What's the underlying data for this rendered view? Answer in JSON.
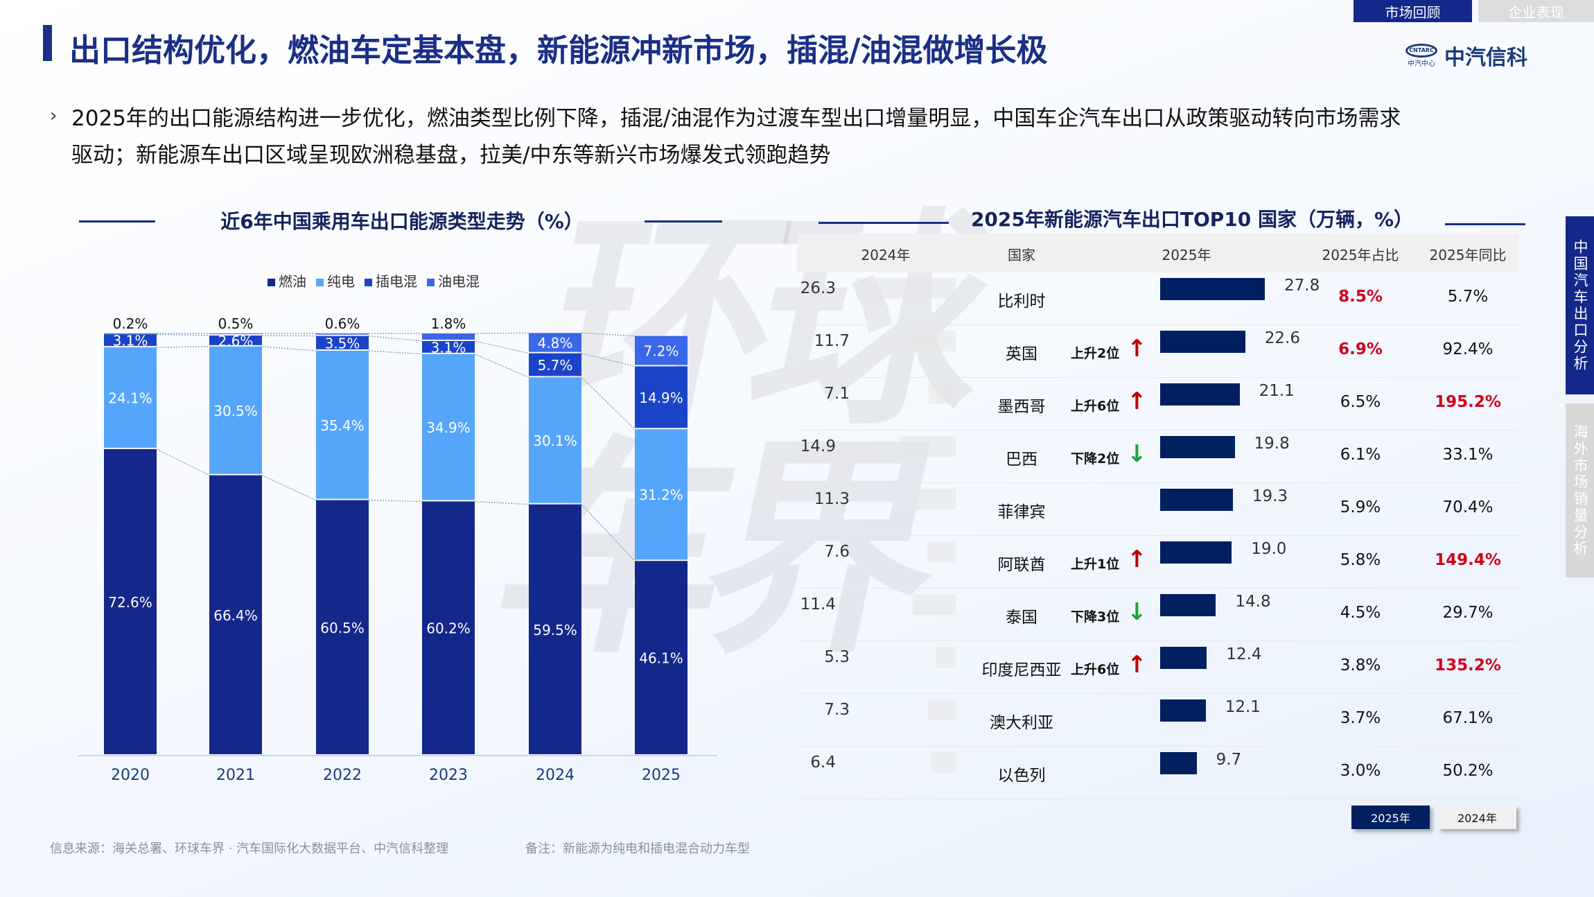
{
  "nav": {
    "tabs": [
      {
        "label": "市场回顾",
        "active": true
      },
      {
        "label": "企业表现",
        "active": false
      }
    ]
  },
  "logo": {
    "badge": "CNTARC",
    "sub": "中汽中心",
    "name": "中汽信科"
  },
  "header": {
    "title": "出口结构优化，燃油车定基本盘，新能源冲新市场，插混/油混做增长极"
  },
  "bullet": {
    "line1": "2025年的出口能源结构进一步优化，燃油类型比例下降，插混/油混作为过渡车型出口增量明显，中国车企汽车出口从政策驱动转向市场需求",
    "line2": "驱动；新能源车出口区域呈现欧洲稳基盘，拉美/中东等新兴市场爆发式领跑趋势"
  },
  "watermark": "环球车界",
  "chart_data": {
    "type": "bar",
    "stacked": true,
    "title": "近6年中国乘用车出口能源类型走势（%）",
    "categories": [
      "2020",
      "2021",
      "2022",
      "2023",
      "2024",
      "2025"
    ],
    "series": [
      {
        "name": "燃油",
        "color": "#13288a",
        "values": [
          72.6,
          66.4,
          60.5,
          60.2,
          59.5,
          46.1
        ]
      },
      {
        "name": "纯电",
        "color": "#55a6fb",
        "values": [
          24.1,
          30.5,
          35.4,
          34.9,
          30.1,
          31.2
        ]
      },
      {
        "name": "插电混",
        "color": "#1a44c8",
        "values": [
          3.1,
          2.6,
          3.5,
          3.1,
          5.7,
          14.9
        ]
      },
      {
        "name": "油电混",
        "color": "#3a66e8",
        "values": [
          0.2,
          0.5,
          0.6,
          1.8,
          4.8,
          7.2
        ]
      }
    ],
    "ylim": [
      0,
      100
    ],
    "legend": "top"
  },
  "table": {
    "title": "2025年新能源汽车出口TOP10 国家（万辆，%）",
    "headers": [
      "2024年",
      "国家",
      "2025年",
      "2025年占比",
      "2025年同比"
    ],
    "rows": [
      {
        "v2024": "26.3",
        "country": "比利时",
        "change": "",
        "dir": "",
        "v2025": "27.8",
        "share": "8.5%",
        "share_hl": true,
        "yoy": "5.7%",
        "yoy_hl": false
      },
      {
        "v2024": "11.7",
        "country": "英国",
        "change": "上升2位",
        "dir": "up",
        "v2025": "22.6",
        "share": "6.9%",
        "share_hl": true,
        "yoy": "92.4%",
        "yoy_hl": false
      },
      {
        "v2024": "7.1",
        "country": "墨西哥",
        "change": "上升6位",
        "dir": "up",
        "v2025": "21.1",
        "share": "6.5%",
        "share_hl": false,
        "yoy": "195.2%",
        "yoy_hl": true
      },
      {
        "v2024": "14.9",
        "country": "巴西",
        "change": "下降2位",
        "dir": "down",
        "v2025": "19.8",
        "share": "6.1%",
        "share_hl": false,
        "yoy": "33.1%",
        "yoy_hl": false
      },
      {
        "v2024": "11.3",
        "country": "菲律宾",
        "change": "",
        "dir": "",
        "v2025": "19.3",
        "share": "5.9%",
        "share_hl": false,
        "yoy": "70.4%",
        "yoy_hl": false
      },
      {
        "v2024": "7.6",
        "country": "阿联酋",
        "change": "上升1位",
        "dir": "up",
        "v2025": "19.0",
        "share": "5.8%",
        "share_hl": false,
        "yoy": "149.4%",
        "yoy_hl": true
      },
      {
        "v2024": "11.4",
        "country": "泰国",
        "change": "下降3位",
        "dir": "down",
        "v2025": "14.8",
        "share": "4.5%",
        "share_hl": false,
        "yoy": "29.7%",
        "yoy_hl": false
      },
      {
        "v2024": "5.3",
        "country": "印度尼西亚",
        "change": "上升6位",
        "dir": "up",
        "v2025": "12.4",
        "share": "3.8%",
        "share_hl": false,
        "yoy": "135.2%",
        "yoy_hl": true
      },
      {
        "v2024": "7.3",
        "country": "澳大利亚",
        "change": "",
        "dir": "",
        "v2025": "12.1",
        "share": "3.7%",
        "share_hl": false,
        "yoy": "67.1%",
        "yoy_hl": false
      },
      {
        "v2024": "6.4",
        "country": "以色列",
        "change": "",
        "dir": "",
        "v2025": "9.7",
        "share": "3.0%",
        "share_hl": false,
        "yoy": "50.2%",
        "yoy_hl": false
      }
    ],
    "buttons": [
      {
        "label": "2025年",
        "active": true
      },
      {
        "label": "2024年",
        "active": false
      }
    ],
    "colors": {
      "bar2025": "#00205f",
      "bar2024": "#e6e6e6",
      "highlight": "#d0021b",
      "up": "#c00000",
      "down": "#1aa33a"
    }
  },
  "side_tabs": [
    {
      "label": "中国汽车出口分析",
      "active": true
    },
    {
      "label": "海外市场销量分析",
      "active": false
    }
  ],
  "footer": {
    "source": "信息来源：海关总署、环球车界 · 汽车国际化大数据平台、中汽信科整理",
    "note": "备注：新能源为纯电和插电混合动力车型"
  }
}
